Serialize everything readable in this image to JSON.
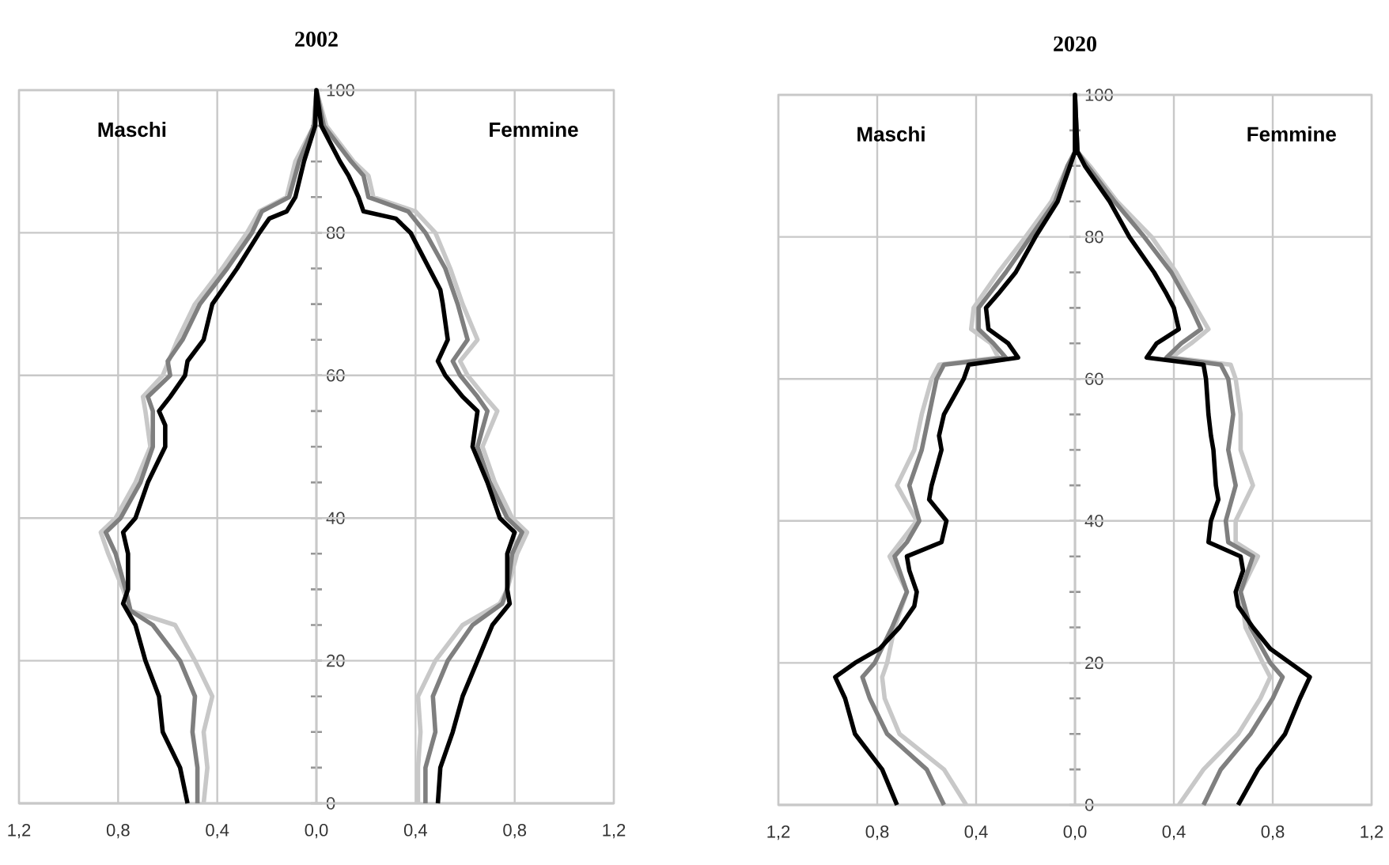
{
  "chart_data": [
    {
      "type": "line",
      "title": "2002",
      "annotations": [
        "Maschi",
        "Femmine"
      ],
      "xlim": [
        -1.2,
        1.2
      ],
      "ylim": [
        0,
        100
      ],
      "grid": true,
      "xticks": [
        {
          "value": -1.2,
          "label": "1,2"
        },
        {
          "value": -0.8,
          "label": "0,8"
        },
        {
          "value": -0.4,
          "label": "0,4"
        },
        {
          "value": 0,
          "label": "0,0"
        },
        {
          "value": 0.4,
          "label": "0,4"
        },
        {
          "value": 0.8,
          "label": "0,8"
        },
        {
          "value": 1.2,
          "label": "1,2"
        }
      ],
      "yticks": [
        0,
        {
          "value": 5,
          "label": null
        },
        {
          "value": 10,
          "label": null
        },
        {
          "value": 15,
          "label": null
        },
        20,
        {
          "value": 25,
          "label": null
        },
        {
          "value": 30,
          "label": null
        },
        {
          "value": 35,
          "label": null
        },
        40,
        {
          "value": 45,
          "label": null
        },
        {
          "value": 50,
          "label": null
        },
        {
          "value": 55,
          "label": null
        },
        60,
        {
          "value": 65,
          "label": null
        },
        {
          "value": 70,
          "label": null
        },
        {
          "value": 75,
          "label": null
        },
        80,
        {
          "value": 85,
          "label": null
        },
        {
          "value": 90,
          "label": null
        },
        {
          "value": 95,
          "label": null
        },
        100
      ],
      "series": [
        {
          "color": "#c8c8c8",
          "x": [
            -0.455,
            -0.44,
            -0.455,
            -0.42,
            -0.49,
            -0.57,
            -0.75,
            -0.78,
            -0.84,
            -0.87,
            -0.81,
            -0.73,
            -0.67,
            -0.69,
            -0.7,
            -0.62,
            -0.56,
            -0.49,
            -0.38,
            -0.28,
            -0.23,
            -0.12,
            -0.085,
            -0.01,
            0,
            0.04,
            0.15,
            0.21,
            0.23,
            0.4,
            0.48,
            0.54,
            0.59,
            0.65,
            0.58,
            0.61,
            0.68,
            0.73,
            0.67,
            0.72,
            0.79,
            0.85,
            0.81,
            0.77,
            0.74,
            0.59,
            0.48,
            0.41,
            0.42,
            0.41,
            0.41
          ],
          "values": [
            0,
            5,
            10,
            15,
            20,
            25,
            27,
            30,
            35,
            38,
            40,
            45,
            50,
            55,
            57,
            60,
            65,
            70,
            75,
            80,
            83,
            85,
            90,
            95,
            100,
            95,
            90,
            88,
            85,
            83,
            80,
            75,
            70,
            65,
            62,
            60,
            57,
            55,
            50,
            45,
            40,
            38,
            35,
            30,
            28,
            25,
            20,
            15,
            10,
            5,
            0
          ]
        },
        {
          "color": "#7f7f7f",
          "x": [
            -0.48,
            -0.48,
            -0.5,
            -0.49,
            -0.55,
            -0.66,
            -0.75,
            -0.77,
            -0.81,
            -0.85,
            -0.79,
            -0.71,
            -0.66,
            -0.66,
            -0.68,
            -0.59,
            -0.6,
            -0.54,
            -0.47,
            -0.36,
            -0.26,
            -0.22,
            -0.11,
            -0.07,
            -0.01,
            0,
            0.03,
            0.14,
            0.19,
            0.21,
            0.37,
            0.44,
            0.52,
            0.57,
            0.61,
            0.55,
            0.58,
            0.65,
            0.69,
            0.65,
            0.7,
            0.77,
            0.83,
            0.79,
            0.77,
            0.75,
            0.63,
            0.53,
            0.47,
            0.48,
            0.44,
            0.44
          ],
          "values": [
            0,
            5,
            10,
            15,
            20,
            25,
            27,
            30,
            35,
            38,
            40,
            45,
            50,
            55,
            57,
            60,
            62,
            65,
            70,
            75,
            80,
            83,
            85,
            90,
            95,
            100,
            95,
            90,
            88,
            85,
            83,
            80,
            75,
            70,
            65,
            62,
            60,
            57,
            55,
            50,
            45,
            40,
            38,
            35,
            30,
            28,
            25,
            20,
            15,
            10,
            5,
            0
          ]
        },
        {
          "color": "#000000",
          "x": [
            -0.52,
            -0.55,
            -0.62,
            -0.635,
            -0.69,
            -0.73,
            -0.78,
            -0.76,
            -0.76,
            -0.78,
            -0.73,
            -0.68,
            -0.61,
            -0.61,
            -0.635,
            -0.59,
            -0.53,
            -0.52,
            -0.455,
            -0.42,
            -0.38,
            -0.32,
            -0.23,
            -0.19,
            -0.12,
            -0.085,
            -0.05,
            -0.005,
            0,
            0.02,
            0.095,
            0.13,
            0.17,
            0.19,
            0.32,
            0.38,
            0.455,
            0.5,
            0.51,
            0.53,
            0.49,
            0.52,
            0.59,
            0.65,
            0.63,
            0.69,
            0.74,
            0.8,
            0.77,
            0.77,
            0.78,
            0.71,
            0.65,
            0.59,
            0.55,
            0.5,
            0.49
          ],
          "values": [
            0,
            5,
            10,
            15,
            20,
            25,
            28,
            30,
            35,
            38,
            40,
            45,
            50,
            53,
            55,
            57,
            60,
            62,
            65,
            70,
            72,
            75,
            80,
            82,
            83,
            85,
            90,
            95,
            100,
            95,
            90,
            88,
            85,
            83,
            82,
            80,
            75,
            72,
            70,
            65,
            62,
            60,
            57,
            55,
            50,
            45,
            40,
            38,
            35,
            30,
            28,
            25,
            20,
            15,
            10,
            5,
            0
          ]
        }
      ]
    },
    {
      "type": "line",
      "title": "2020",
      "annotations": [
        "Maschi",
        "Femmine"
      ],
      "xlim": [
        -1.2,
        1.2
      ],
      "ylim": [
        0,
        100
      ],
      "grid": true,
      "xticks": [
        {
          "value": -1.2,
          "label": "1,2"
        },
        {
          "value": -0.8,
          "label": "0,8"
        },
        {
          "value": -0.4,
          "label": "0,4"
        },
        {
          "value": 0,
          "label": "0,0"
        },
        {
          "value": 0.4,
          "label": "0,4"
        },
        {
          "value": 0.8,
          "label": "0,8"
        },
        {
          "value": 1.2,
          "label": "1,2"
        }
      ],
      "yticks": [
        0,
        {
          "value": 5,
          "label": null
        },
        {
          "value": 10,
          "label": null
        },
        {
          "value": 15,
          "label": null
        },
        20,
        {
          "value": 25,
          "label": null
        },
        {
          "value": 30,
          "label": null
        },
        {
          "value": 35,
          "label": null
        },
        40,
        {
          "value": 45,
          "label": null
        },
        {
          "value": 50,
          "label": null
        },
        {
          "value": 55,
          "label": null
        },
        60,
        {
          "value": 65,
          "label": null
        },
        {
          "value": 70,
          "label": null
        },
        {
          "value": 75,
          "label": null
        },
        80,
        {
          "value": 85,
          "label": null
        },
        {
          "value": 90,
          "label": null
        },
        {
          "value": 95,
          "label": null
        },
        100
      ],
      "series": [
        {
          "color": "#c8c8c8",
          "x": [
            -0.44,
            -0.53,
            -0.71,
            -0.77,
            -0.78,
            -0.76,
            -0.73,
            -0.68,
            -0.75,
            -0.64,
            -0.72,
            -0.65,
            -0.62,
            -0.58,
            -0.55,
            -0.31,
            -0.34,
            -0.42,
            -0.41,
            -0.31,
            -0.2,
            -0.095,
            -0.03,
            0,
            0,
            0.01,
            0.06,
            0.17,
            0.31,
            0.41,
            0.49,
            0.54,
            0.47,
            0.39,
            0.63,
            0.65,
            0.67,
            0.67,
            0.72,
            0.65,
            0.65,
            0.74,
            0.67,
            0.69,
            0.76,
            0.79,
            0.75,
            0.66,
            0.52,
            0.42
          ],
          "values": [
            0,
            5,
            10,
            15,
            18,
            20,
            25,
            30,
            35,
            40,
            45,
            50,
            55,
            60,
            62,
            63,
            65,
            67,
            70,
            75,
            80,
            85,
            90,
            92,
            100,
            92,
            90,
            85,
            80,
            75,
            70,
            67,
            65,
            63,
            62,
            60,
            55,
            50,
            45,
            40,
            37,
            35,
            30,
            25,
            20,
            18,
            15,
            10,
            5,
            0
          ]
        },
        {
          "color": "#7f7f7f",
          "x": [
            -0.53,
            -0.6,
            -0.76,
            -0.83,
            -0.86,
            -0.81,
            -0.74,
            -0.68,
            -0.73,
            -0.68,
            -0.63,
            -0.67,
            -0.62,
            -0.59,
            -0.56,
            -0.53,
            -0.28,
            -0.33,
            -0.39,
            -0.39,
            -0.28,
            -0.18,
            -0.08,
            -0.03,
            0,
            0,
            0.01,
            0.05,
            0.16,
            0.28,
            0.39,
            0.47,
            0.51,
            0.43,
            0.37,
            0.59,
            0.62,
            0.64,
            0.62,
            0.65,
            0.61,
            0.62,
            0.72,
            0.67,
            0.71,
            0.79,
            0.84,
            0.8,
            0.71,
            0.59,
            0.52
          ],
          "values": [
            0,
            5,
            10,
            15,
            18,
            20,
            25,
            30,
            35,
            37,
            40,
            45,
            50,
            55,
            60,
            62,
            63,
            65,
            67,
            70,
            75,
            80,
            85,
            90,
            92,
            100,
            92,
            90,
            85,
            80,
            75,
            70,
            67,
            65,
            63,
            62,
            60,
            55,
            50,
            45,
            40,
            37,
            35,
            30,
            25,
            20,
            18,
            15,
            10,
            5,
            0
          ]
        },
        {
          "color": "#000000",
          "x": [
            -0.72,
            -0.78,
            -0.89,
            -0.93,
            -0.97,
            -0.89,
            -0.79,
            -0.71,
            -0.65,
            -0.64,
            -0.67,
            -0.68,
            -0.54,
            -0.52,
            -0.59,
            -0.58,
            -0.54,
            -0.55,
            -0.53,
            -0.45,
            -0.43,
            -0.23,
            -0.27,
            -0.35,
            -0.36,
            -0.31,
            -0.24,
            -0.16,
            -0.07,
            -0.02,
            0,
            0,
            0.01,
            0.04,
            0.14,
            0.22,
            0.32,
            0.37,
            0.4,
            0.42,
            0.33,
            0.29,
            0.52,
            0.53,
            0.54,
            0.55,
            0.56,
            0.57,
            0.58,
            0.55,
            0.54,
            0.67,
            0.68,
            0.65,
            0.66,
            0.72,
            0.79,
            0.87,
            0.95,
            0.91,
            0.85,
            0.74,
            0.66
          ],
          "values": [
            0,
            5,
            10,
            15,
            18,
            20,
            22,
            25,
            28,
            30,
            33,
            35,
            37,
            40,
            43,
            45,
            50,
            52,
            55,
            60,
            62,
            63,
            65,
            67,
            70,
            72,
            75,
            80,
            85,
            90,
            92,
            100,
            92,
            90,
            85,
            80,
            75,
            72,
            70,
            67,
            65,
            63,
            62,
            60,
            55,
            52,
            50,
            45,
            43,
            40,
            37,
            35,
            33,
            30,
            28,
            25,
            22,
            20,
            18,
            15,
            10,
            5,
            0
          ]
        }
      ]
    }
  ]
}
